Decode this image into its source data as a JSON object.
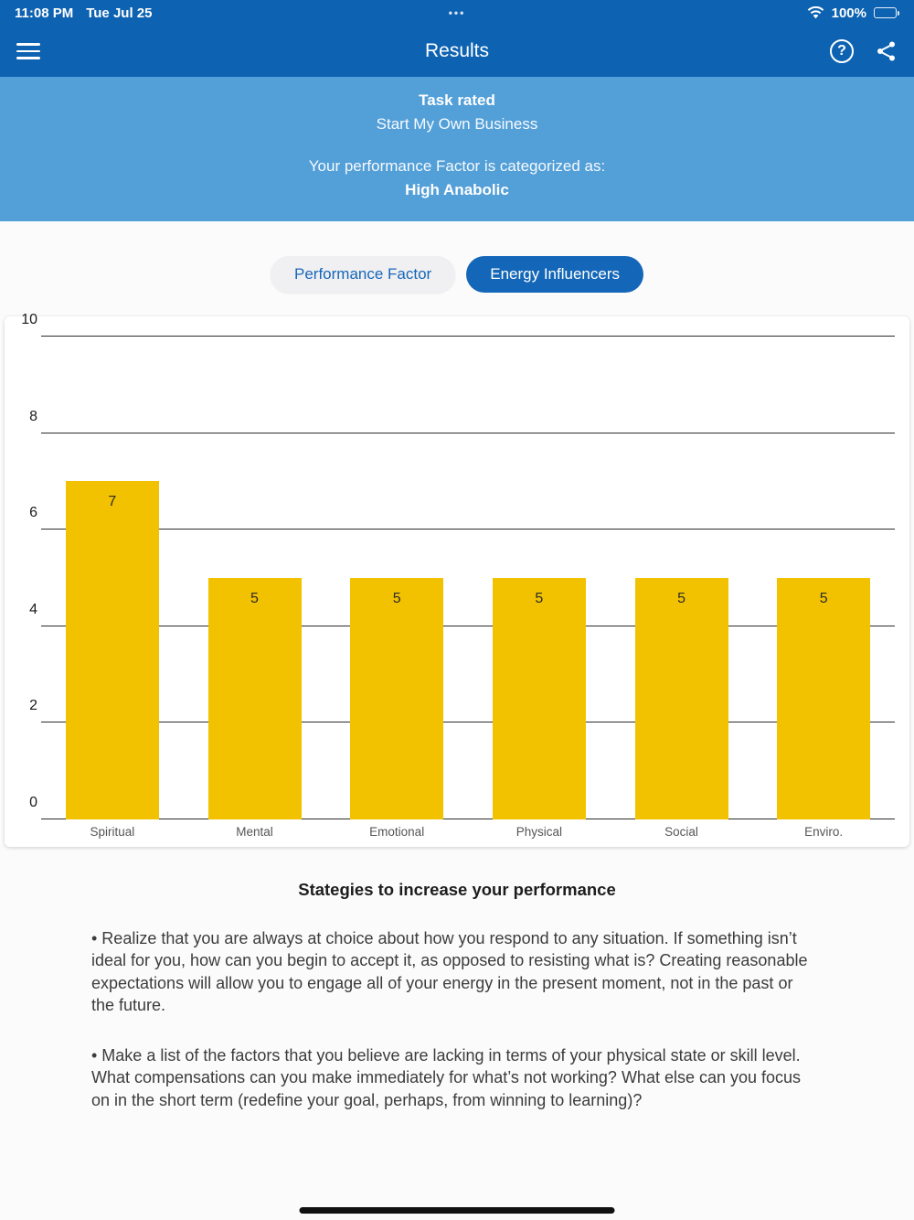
{
  "status_bar": {
    "time": "11:08 PM",
    "date": "Tue Jul 25",
    "battery": "100%"
  },
  "icons": {
    "status_dots": "•••",
    "help_glyph": "?"
  },
  "header": {
    "title": "Results"
  },
  "banner": {
    "task_rated_label": "Task rated",
    "task_name": "Start My Own Business",
    "category_label": "Your performance Factor is categorized as:",
    "category_value": "High Anabolic"
  },
  "tabs": [
    {
      "label": "Performance Factor",
      "active": false
    },
    {
      "label": "Energy Influencers",
      "active": true
    }
  ],
  "chart_data": {
    "type": "bar",
    "categories": [
      "Spiritual",
      "Mental",
      "Emotional",
      "Physical",
      "Social",
      "Enviro."
    ],
    "values": [
      7,
      5,
      5,
      5,
      5,
      5
    ],
    "title": "",
    "xlabel": "",
    "ylabel": "",
    "ylim": [
      0,
      10
    ],
    "yticks": [
      0,
      2,
      4,
      6,
      8,
      10
    ],
    "bar_color": "#f2c200",
    "grid": true,
    "legend": false
  },
  "strategies": {
    "title": "Stategies to increase your performance",
    "bullets": [
      "• Realize that you are always at choice about how you respond to any situation. If something isn’t ideal for you, how can you begin to accept it, as opposed to resisting what is? Creating reasonable expectations will allow you to engage all of your energy in the present moment, not in the past or the future.",
      "• Make a list of the factors that you believe are lacking in terms of your physical state or skill level. What compensations can you make immediately for what’s not working? What else can you focus on in the short term (redefine your goal, perhaps, from winning to learning)?"
    ]
  },
  "colors": {
    "header_blue": "#0d62b1",
    "banner_blue": "#539fd8",
    "bar_gold": "#f2c200",
    "active_tab_blue": "#1467b8"
  }
}
